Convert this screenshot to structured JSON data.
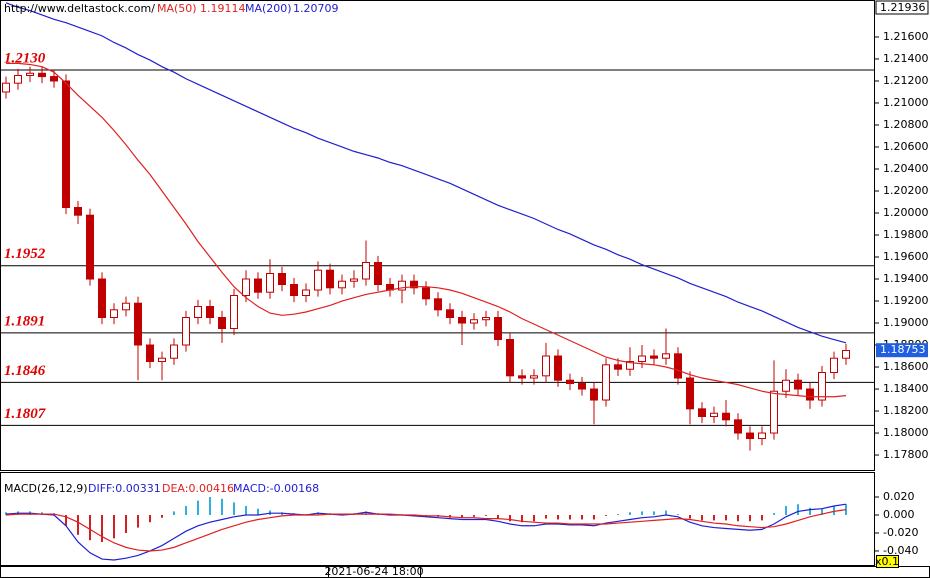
{
  "chart_data": {
    "type": "candlestick",
    "header": {
      "source": "http://www.deltastock.com/",
      "ma50_label": "MA(50)",
      "ma50_value": "1.19114",
      "ma200_label": "MA(200)",
      "ma200_value": "1.20709"
    },
    "open": [
      1.211,
      1.2118,
      1.2125,
      1.2127,
      1.2124,
      1.212,
      1.2005,
      1.1998,
      1.194,
      1.1905,
      1.1912,
      1.1918,
      1.188,
      1.1865,
      1.1868,
      1.188,
      1.1905,
      1.1915,
      1.1905,
      1.1895,
      1.1925,
      1.194,
      1.1928,
      1.1945,
      1.1935,
      1.1925,
      1.193,
      1.1948,
      1.1932,
      1.1938,
      1.194,
      1.1955,
      1.1935,
      1.193,
      1.1938,
      1.1932,
      1.1922,
      1.1912,
      1.1905,
      1.19,
      1.1903,
      1.1905,
      1.1885,
      1.1852,
      1.185,
      1.1852,
      1.187,
      1.1848,
      1.1845,
      1.184,
      1.183,
      1.1862,
      1.1858,
      1.1865,
      1.187,
      1.1868,
      1.1872,
      1.185,
      1.1822,
      1.1815,
      1.1818,
      1.1812,
      1.18,
      1.1795,
      1.18,
      1.1838,
      1.1848,
      1.184,
      1.183,
      1.1855,
      1.1868
    ],
    "high": [
      1.2124,
      1.2131,
      1.2133,
      1.2133,
      1.213,
      1.2126,
      1.2011,
      1.2004,
      1.1946,
      1.1918,
      1.1924,
      1.1924,
      1.1886,
      1.1874,
      1.1886,
      1.1911,
      1.1921,
      1.1921,
      1.1911,
      1.1931,
      1.1948,
      1.1946,
      1.1958,
      1.1951,
      1.1941,
      1.1936,
      1.1956,
      1.1954,
      1.1944,
      1.1948,
      1.1975,
      1.1961,
      1.1941,
      1.1944,
      1.1944,
      1.1938,
      1.1928,
      1.1918,
      1.1911,
      1.1909,
      1.1911,
      1.1911,
      1.1891,
      1.1858,
      1.1858,
      1.1882,
      1.1876,
      1.1854,
      1.1851,
      1.1846,
      1.1868,
      1.1868,
      1.1878,
      1.188,
      1.1876,
      1.1895,
      1.1878,
      1.1856,
      1.1828,
      1.1824,
      1.183,
      1.1818,
      1.1806,
      1.1806,
      1.1866,
      1.1858,
      1.1854,
      1.1846,
      1.1861,
      1.1874,
      1.1881
    ],
    "low": [
      1.2104,
      1.2112,
      1.2119,
      1.2118,
      1.2114,
      1.1999,
      1.199,
      1.1934,
      1.1899,
      1.1899,
      1.1906,
      1.1848,
      1.1859,
      1.1848,
      1.1862,
      1.1874,
      1.1899,
      1.1899,
      1.1882,
      1.1889,
      1.1919,
      1.1922,
      1.1922,
      1.1929,
      1.1919,
      1.1919,
      1.1924,
      1.1926,
      1.1926,
      1.1932,
      1.1934,
      1.1929,
      1.1924,
      1.1918,
      1.1926,
      1.1916,
      1.1906,
      1.1899,
      1.188,
      1.1894,
      1.1897,
      1.1879,
      1.1846,
      1.1844,
      1.1844,
      1.1846,
      1.1842,
      1.1839,
      1.1834,
      1.1808,
      1.1824,
      1.1852,
      1.1852,
      1.1859,
      1.1862,
      1.1862,
      1.1844,
      1.1808,
      1.1809,
      1.1809,
      1.1806,
      1.1794,
      1.1784,
      1.1789,
      1.1794,
      1.1832,
      1.1834,
      1.1822,
      1.1824,
      1.1849,
      1.1862
    ],
    "close": [
      1.2118,
      1.2125,
      1.2127,
      1.2124,
      1.212,
      1.2005,
      1.1998,
      1.194,
      1.1905,
      1.1912,
      1.1918,
      1.188,
      1.1865,
      1.1868,
      1.188,
      1.1905,
      1.1915,
      1.1905,
      1.1895,
      1.1925,
      1.194,
      1.1928,
      1.1945,
      1.1935,
      1.1925,
      1.193,
      1.1948,
      1.1932,
      1.1938,
      1.194,
      1.1955,
      1.1935,
      1.193,
      1.1938,
      1.1932,
      1.1922,
      1.1912,
      1.1905,
      1.19,
      1.1903,
      1.1905,
      1.1885,
      1.1852,
      1.185,
      1.1852,
      1.187,
      1.1848,
      1.1845,
      1.184,
      1.183,
      1.1862,
      1.1858,
      1.1865,
      1.187,
      1.1868,
      1.1872,
      1.185,
      1.1822,
      1.1815,
      1.1818,
      1.1812,
      1.18,
      1.1795,
      1.18,
      1.1838,
      1.1848,
      1.184,
      1.183,
      1.1855,
      1.1868,
      1.1875
    ],
    "candle_color": "#c00000",
    "series": [
      {
        "name": "MA(50)",
        "color": "#e02020",
        "values": [
          1.2136,
          1.2136,
          1.2135,
          1.2133,
          1.2128,
          1.2118,
          1.2107,
          1.2097,
          1.2087,
          1.2075,
          1.2062,
          1.2048,
          1.2035,
          1.202,
          1.2005,
          1.199,
          1.1974,
          1.196,
          1.1946,
          1.1933,
          1.1923,
          1.1915,
          1.1909,
          1.1907,
          1.1908,
          1.191,
          1.1913,
          1.1916,
          1.192,
          1.1923,
          1.1926,
          1.1928,
          1.193,
          1.1932,
          1.1933,
          1.1933,
          1.1932,
          1.193,
          1.1927,
          1.1923,
          1.1919,
          1.1915,
          1.191,
          1.1904,
          1.1899,
          1.1894,
          1.1889,
          1.1884,
          1.1879,
          1.1874,
          1.1869,
          1.1866,
          1.1864,
          1.1863,
          1.1862,
          1.186,
          1.1857,
          1.1853,
          1.185,
          1.1848,
          1.1846,
          1.1844,
          1.1841,
          1.1838,
          1.1836,
          1.1835,
          1.1834,
          1.1833,
          1.1833,
          1.1833,
          1.1834
        ]
      },
      {
        "name": "MA(200)",
        "color": "#2020d0",
        "values": [
          1.2191,
          1.2187,
          1.2184,
          1.218,
          1.2176,
          1.2173,
          1.2169,
          1.2165,
          1.2161,
          1.2155,
          1.215,
          1.2144,
          1.2139,
          1.2133,
          1.2128,
          1.2122,
          1.2117,
          1.2112,
          1.2107,
          1.2102,
          1.2097,
          1.2092,
          1.2087,
          1.2082,
          1.2077,
          1.2073,
          1.2068,
          1.2064,
          1.206,
          1.2056,
          1.2053,
          1.205,
          1.2046,
          1.2043,
          1.2039,
          1.2035,
          1.2031,
          1.2027,
          1.2022,
          1.2017,
          1.2012,
          1.2007,
          1.2003,
          1.1999,
          1.1995,
          1.199,
          1.1985,
          1.1981,
          1.1976,
          1.1971,
          1.1967,
          1.1962,
          1.1958,
          1.1953,
          1.1949,
          1.1945,
          1.1941,
          1.1936,
          1.1932,
          1.1928,
          1.1924,
          1.1919,
          1.1915,
          1.1911,
          1.1906,
          1.1901,
          1.1896,
          1.1892,
          1.1888,
          1.1885,
          1.1882
        ]
      }
    ],
    "levels": [
      {
        "value": 1.213,
        "label": "1.2130"
      },
      {
        "value": 1.1952,
        "label": "1.1952"
      },
      {
        "value": 1.1891,
        "label": "1.1891"
      },
      {
        "value": 1.1846,
        "label": "1.1846"
      },
      {
        "value": 1.1807,
        "label": "1.1807"
      }
    ],
    "ylim": [
      1.17664,
      1.21936
    ],
    "yticks": [
      {
        "value": 1.216,
        "label": "1.21600"
      },
      {
        "value": 1.214,
        "label": "1.21400"
      },
      {
        "value": 1.212,
        "label": "1.21200"
      },
      {
        "value": 1.21,
        "label": "1.21000"
      },
      {
        "value": 1.208,
        "label": "1.20800"
      },
      {
        "value": 1.206,
        "label": "1.20600"
      },
      {
        "value": 1.204,
        "label": "1.20400"
      },
      {
        "value": 1.202,
        "label": "1.20200"
      },
      {
        "value": 1.2,
        "label": "1.20000"
      },
      {
        "value": 1.198,
        "label": "1.19800"
      },
      {
        "value": 1.196,
        "label": "1.19600"
      },
      {
        "value": 1.194,
        "label": "1.19400"
      },
      {
        "value": 1.192,
        "label": "1.19200"
      },
      {
        "value": 1.19,
        "label": "1.19000"
      },
      {
        "value": 1.188,
        "label": "1.18800"
      },
      {
        "value": 1.186,
        "label": "1.18600"
      },
      {
        "value": 1.184,
        "label": "1.18400"
      },
      {
        "value": 1.182,
        "label": "1.18200"
      },
      {
        "value": 1.18,
        "label": "1.18000"
      },
      {
        "value": 1.178,
        "label": "1.17800"
      }
    ],
    "top_price": 1.21936,
    "last_price": 1.18753,
    "macd": {
      "header": {
        "title": "MACD(26,12,9)",
        "diff": "DIFF:0.00331",
        "dea": "DEA:0.00416",
        "macd": "MACD:-0.00168"
      },
      "histogram": [
        0.003,
        0.004,
        0.004,
        0.003,
        0.002,
        -0.012,
        -0.022,
        -0.028,
        -0.03,
        -0.026,
        -0.02,
        -0.014,
        -0.008,
        -0.003,
        0.004,
        0.01,
        0.016,
        0.02,
        0.018,
        0.014,
        0.01,
        0.007,
        0.005,
        0.003,
        0.002,
        0.001,
        0.003,
        0.002,
        0.001,
        0.002,
        0.004,
        0.002,
        0.0,
        0.001,
        0.0,
        -0.001,
        -0.002,
        -0.003,
        -0.003,
        -0.002,
        -0.001,
        -0.004,
        -0.007,
        -0.008,
        -0.007,
        -0.004,
        -0.005,
        -0.005,
        -0.005,
        -0.005,
        -0.001,
        0.001,
        0.003,
        0.004,
        0.004,
        0.005,
        0.001,
        -0.004,
        -0.006,
        -0.006,
        -0.006,
        -0.007,
        -0.007,
        -0.006,
        0.002,
        0.01,
        0.012,
        0.008,
        0.007,
        0.01,
        0.012
      ],
      "pos_color": "#30b0e0",
      "neg_color": "#d02020",
      "series": [
        {
          "name": "DIFF",
          "color": "#2020d0",
          "values": [
            0.001,
            0.002,
            0.002,
            0.001,
            0.0,
            -0.012,
            -0.03,
            -0.042,
            -0.049,
            -0.05,
            -0.048,
            -0.045,
            -0.04,
            -0.034,
            -0.026,
            -0.018,
            -0.012,
            -0.008,
            -0.005,
            -0.002,
            0.0,
            0.0,
            0.002,
            0.002,
            0.001,
            0.0,
            0.002,
            0.001,
            0.0,
            0.001,
            0.003,
            0.001,
            0.0,
            0.0,
            -0.001,
            -0.002,
            -0.003,
            -0.004,
            -0.005,
            -0.005,
            -0.005,
            -0.007,
            -0.01,
            -0.012,
            -0.012,
            -0.01,
            -0.01,
            -0.011,
            -0.011,
            -0.012,
            -0.009,
            -0.007,
            -0.005,
            -0.003,
            -0.002,
            0.0,
            -0.002,
            -0.008,
            -0.012,
            -0.014,
            -0.015,
            -0.016,
            -0.017,
            -0.016,
            -0.01,
            -0.002,
            0.004,
            0.006,
            0.007,
            0.01,
            0.012
          ]
        },
        {
          "name": "DEA",
          "color": "#e02020",
          "values": [
            0.0,
            0.001,
            0.001,
            0.001,
            0.001,
            -0.002,
            -0.008,
            -0.016,
            -0.024,
            -0.031,
            -0.036,
            -0.039,
            -0.04,
            -0.039,
            -0.036,
            -0.031,
            -0.026,
            -0.021,
            -0.016,
            -0.012,
            -0.008,
            -0.005,
            -0.003,
            -0.001,
            0.0,
            0.0,
            0.0,
            0.001,
            0.001,
            0.001,
            0.001,
            0.001,
            0.001,
            0.0,
            0.0,
            -0.001,
            -0.001,
            -0.002,
            -0.003,
            -0.003,
            -0.004,
            -0.004,
            -0.005,
            -0.007,
            -0.008,
            -0.009,
            -0.009,
            -0.01,
            -0.01,
            -0.01,
            -0.01,
            -0.009,
            -0.008,
            -0.007,
            -0.006,
            -0.005,
            -0.004,
            -0.005,
            -0.007,
            -0.009,
            -0.01,
            -0.012,
            -0.013,
            -0.014,
            -0.013,
            -0.01,
            -0.006,
            -0.002,
            0.001,
            0.004,
            0.006
          ]
        }
      ],
      "ylim": [
        -0.0556,
        0.0478
      ],
      "yticks": [
        {
          "value": 0.02,
          "label": "0.020"
        },
        {
          "value": 0,
          "label": "0.000"
        },
        {
          "value": -0.02,
          "label": "-0.020"
        },
        {
          "value": -0.04,
          "label": "-0.040"
        }
      ]
    },
    "date_label": "2021-06-24 18:00",
    "zoom_label": "x0.1"
  }
}
